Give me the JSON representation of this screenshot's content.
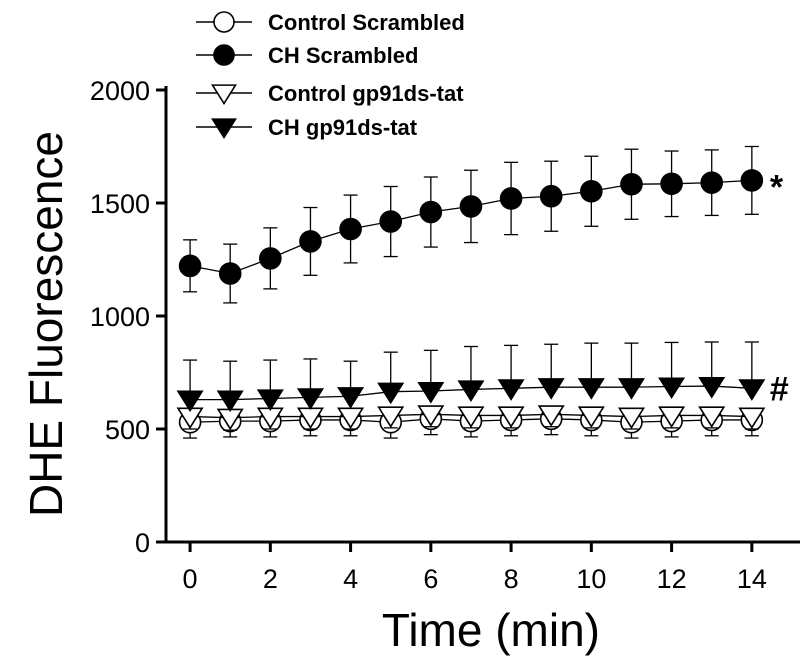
{
  "chart_data": {
    "type": "line",
    "xlabel": "Time (min)",
    "ylabel": "DHE Fluorescence",
    "xlim": [
      -0.6,
      15.2
    ],
    "ylim": [
      0,
      2000
    ],
    "xticks": [
      0,
      2,
      4,
      6,
      8,
      10,
      12,
      14
    ],
    "yticks": [
      0,
      500,
      1000,
      1500,
      2000
    ],
    "grid": false,
    "legend_position": "top-left",
    "x": [
      0,
      1,
      2,
      3,
      4,
      5,
      6,
      7,
      8,
      9,
      10,
      11,
      12,
      13,
      14
    ],
    "series": [
      {
        "name": "Control Scrambled",
        "marker": "circle-open",
        "error_direction": "down",
        "values": [
          530,
          535,
          535,
          540,
          540,
          530,
          545,
          535,
          540,
          545,
          540,
          530,
          535,
          540,
          540
        ],
        "errors": [
          70,
          70,
          70,
          70,
          70,
          70,
          70,
          70,
          70,
          70,
          70,
          70,
          70,
          70,
          70
        ]
      },
      {
        "name": "CH Scrambled",
        "marker": "circle-filled",
        "error_direction": "both",
        "values": [
          1222,
          1188,
          1255,
          1330,
          1385,
          1418,
          1460,
          1485,
          1520,
          1530,
          1552,
          1583,
          1585,
          1590,
          1600
        ],
        "errors": [
          115,
          130,
          135,
          150,
          150,
          155,
          155,
          160,
          160,
          155,
          155,
          155,
          145,
          145,
          150
        ]
      },
      {
        "name": "Control  gp91ds-tat",
        "marker": "triangle-down-open",
        "error_direction": "down",
        "values": [
          555,
          550,
          555,
          555,
          555,
          560,
          565,
          560,
          560,
          565,
          560,
          555,
          560,
          560,
          555
        ],
        "errors": [
          55,
          55,
          55,
          55,
          55,
          55,
          55,
          55,
          55,
          55,
          55,
          55,
          55,
          55,
          55
        ]
      },
      {
        "name": "CH  gp91ds-tat",
        "marker": "triangle-down-filled",
        "error_direction": "up",
        "values": [
          630,
          630,
          635,
          640,
          645,
          665,
          668,
          675,
          680,
          685,
          685,
          685,
          688,
          690,
          680
        ],
        "errors": [
          175,
          170,
          170,
          170,
          155,
          175,
          180,
          190,
          190,
          190,
          195,
          195,
          195,
          195,
          205
        ]
      }
    ],
    "annotations": [
      {
        "text": "*",
        "series": "CH Scrambled"
      },
      {
        "text": "#",
        "series": "CH  gp91ds-tat"
      }
    ]
  }
}
